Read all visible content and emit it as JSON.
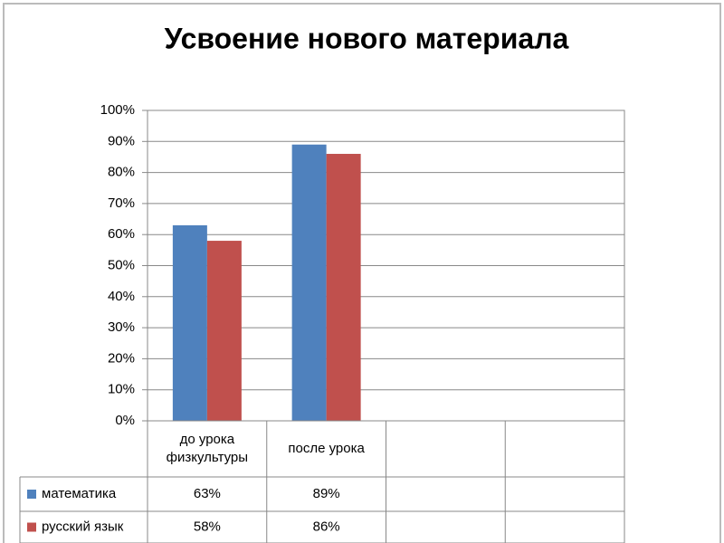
{
  "chart_data": {
    "type": "bar",
    "title": "Усвоение нового материала",
    "categories": [
      "до урока физкультуры",
      "после урока",
      null,
      null
    ],
    "series": [
      {
        "name": "математика",
        "color": "#4f81bd",
        "values": [
          63,
          89,
          null,
          null
        ],
        "value_labels": [
          "63%",
          "89%",
          null,
          null
        ]
      },
      {
        "name": "русский язык",
        "color": "#c0504d",
        "values": [
          58,
          86,
          null,
          null
        ],
        "value_labels": [
          "58%",
          "86%",
          null,
          null
        ]
      }
    ],
    "ylim": [
      0,
      100
    ],
    "yticks": [
      {
        "value": 0,
        "label": "0%"
      },
      {
        "value": 10,
        "label": "10%"
      },
      {
        "value": 20,
        "label": "20%"
      },
      {
        "value": 30,
        "label": "30%"
      },
      {
        "value": 40,
        "label": "40%"
      },
      {
        "value": 50,
        "label": "50%"
      },
      {
        "value": 60,
        "label": "60%"
      },
      {
        "value": 70,
        "label": "70%"
      },
      {
        "value": 80,
        "label": "80%"
      },
      {
        "value": 90,
        "label": "90%"
      },
      {
        "value": 100,
        "label": "100%"
      }
    ],
    "grid": true,
    "data_table": true
  }
}
